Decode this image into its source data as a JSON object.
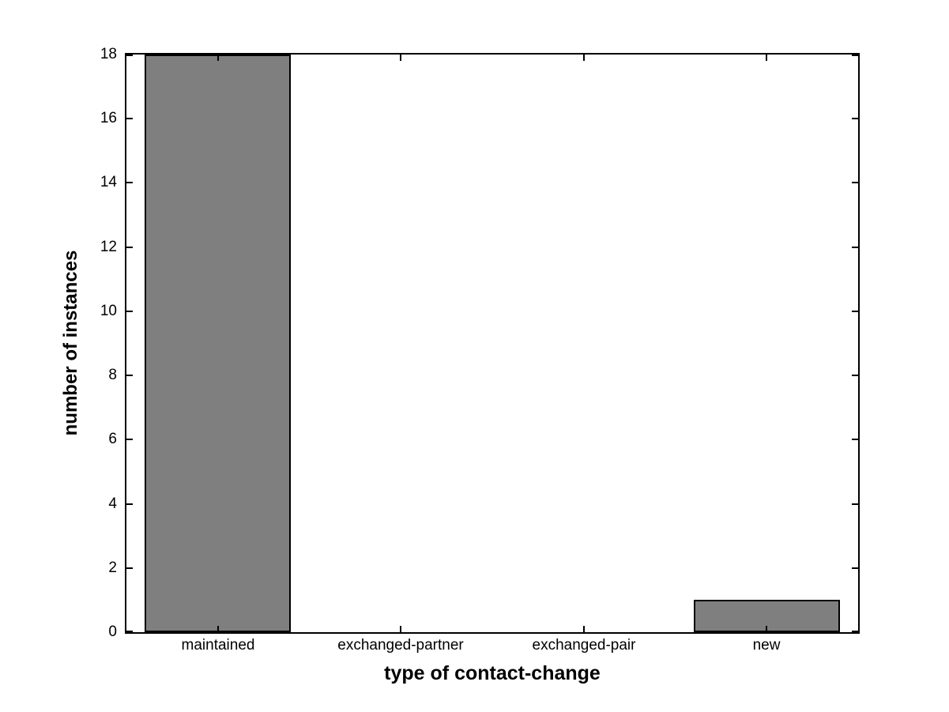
{
  "chart_data": {
    "type": "bar",
    "categories": [
      "maintained",
      "exchanged-partner",
      "exchanged-pair",
      "new"
    ],
    "values": [
      18,
      0,
      0,
      1
    ],
    "title": "",
    "xlabel": "type of contact-change",
    "ylabel": "number of instances",
    "ylim": [
      0,
      18
    ],
    "yticks": [
      0,
      2,
      4,
      6,
      8,
      10,
      12,
      14,
      16,
      18
    ],
    "xlim": [
      0.5,
      4.5
    ],
    "bar_width_fraction": 0.8,
    "grid": false,
    "legend": "none",
    "bar_fill_color": "#7f7f7f",
    "bar_edge_color": "#000000",
    "axis_color": "#000000",
    "background_color": "#ffffff"
  }
}
